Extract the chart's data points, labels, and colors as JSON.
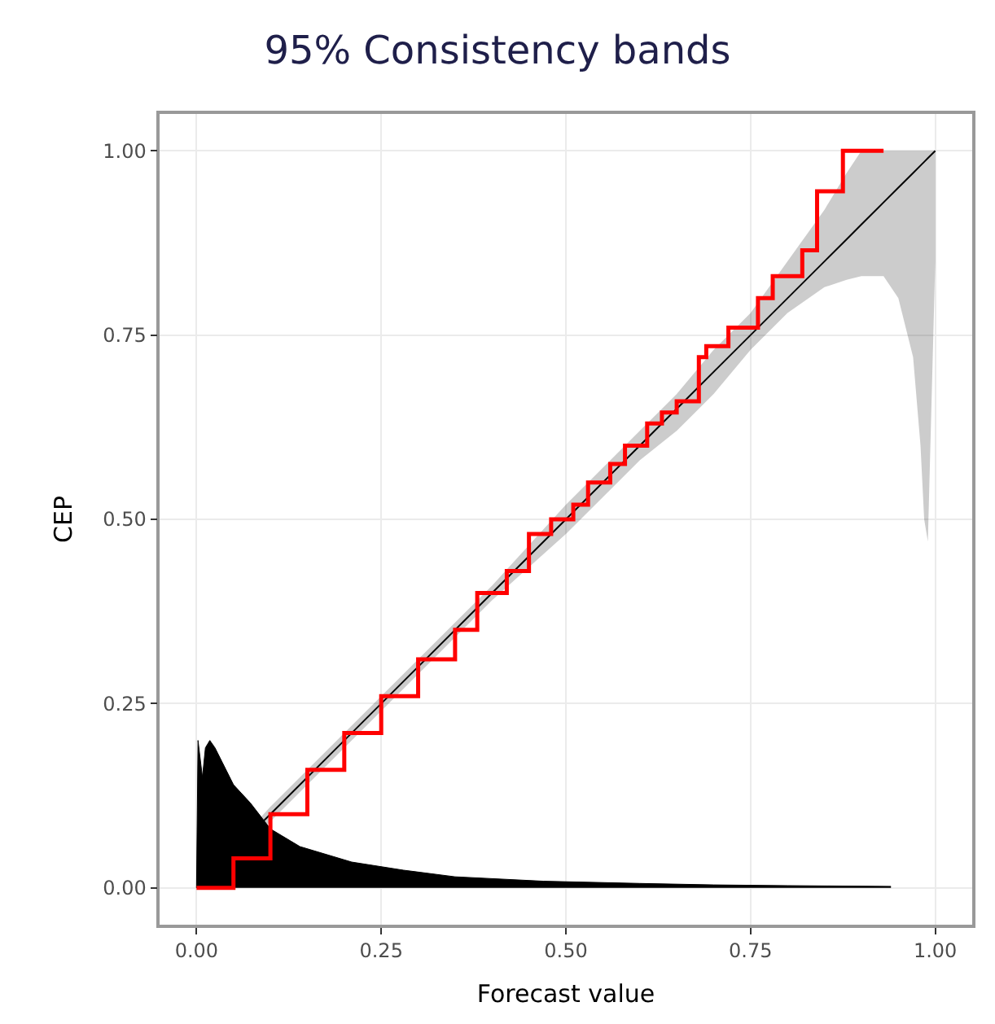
{
  "chart_data": {
    "type": "line",
    "title": "95% Consistency bands",
    "xlabel": "Forecast value",
    "ylabel": "CEP",
    "xlim": [
      -0.05,
      1.05
    ],
    "ylim": [
      -0.05,
      1.05
    ],
    "xticks": [
      {
        "value": 0,
        "label": "0.00"
      },
      0.25,
      {
        "value": 0.5,
        "label": "0.50"
      },
      0.75,
      {
        "value": 1,
        "label": "1.00"
      }
    ],
    "yticks": [
      {
        "value": 0,
        "label": "0.00"
      },
      0.25,
      {
        "value": 0.5,
        "label": "0.50"
      },
      0.75,
      {
        "value": 1,
        "label": "1.00"
      }
    ],
    "grid": true,
    "series": [
      {
        "type": "area",
        "color": "#000000",
        "x": [
          0,
          0.002,
          0.008,
          0.012,
          0.018,
          0.025,
          0.035,
          0.05,
          0.073,
          0.1,
          0.14,
          0.21,
          0.28,
          0.35,
          0.47,
          0.6,
          0.7,
          0.8,
          0.94
        ],
        "values": [
          0,
          0.2,
          0.15,
          0.19,
          0.2,
          0.19,
          0.17,
          0.14,
          0.115,
          0.08,
          0.056,
          0.035,
          0.024,
          0.015,
          0.009,
          0.006,
          0.004,
          0.003,
          0.002
        ]
      },
      {
        "color": "#000000",
        "x": [
          0,
          0.1,
          0.2,
          0.3,
          0.4,
          0.5,
          0.6,
          0.65,
          0.7,
          0.75,
          0.8,
          0.85,
          0.88,
          0.9,
          0.93,
          0.95,
          0.97,
          0.98,
          0.985,
          0.99,
          1
        ],
        "values": [
          0,
          0.1,
          0.2,
          0.3,
          0.4,
          0.5,
          0.6,
          0.65,
          0.7,
          0.75,
          0.8,
          0.85,
          0.88,
          0.9,
          0.93,
          0.95,
          0.97,
          0.98,
          0.985,
          0.99,
          1
        ],
        "lower": [
          0,
          0.09,
          0.19,
          0.29,
          0.39,
          0.48,
          0.58,
          0.62,
          0.67,
          0.73,
          0.78,
          0.815,
          0.825,
          0.83,
          0.83,
          0.8,
          0.72,
          0.6,
          0.5,
          0.47,
          0.85
        ],
        "upper": [
          0,
          0.11,
          0.21,
          0.31,
          0.41,
          0.52,
          0.62,
          0.67,
          0.73,
          0.78,
          0.85,
          0.92,
          0.97,
          1,
          1,
          1,
          1,
          1,
          1,
          1,
          1
        ]
      },
      {
        "type": "step",
        "color": "#ff0000",
        "x": [
          0,
          0.05,
          0.1,
          0.15,
          0.2,
          0.25,
          0.3,
          0.35,
          0.38,
          0.42,
          0.45,
          0.48,
          0.51,
          0.53,
          0.56,
          0.58,
          0.61,
          0.63,
          0.65,
          0.68,
          0.69,
          0.72,
          0.76,
          0.78,
          0.82,
          0.84,
          0.875,
          0.93
        ],
        "values": [
          0,
          0.04,
          0.1,
          0.16,
          0.21,
          0.26,
          0.31,
          0.35,
          0.4,
          0.43,
          0.48,
          0.5,
          0.52,
          0.55,
          0.575,
          0.6,
          0.63,
          0.645,
          0.66,
          0.72,
          0.735,
          0.76,
          0.8,
          0.83,
          0.865,
          0.945,
          1,
          1
        ]
      }
    ]
  }
}
